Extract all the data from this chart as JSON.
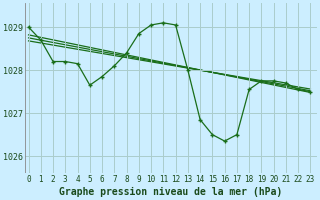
{
  "title": "Graphe pression niveau de la mer (hPa)",
  "background_color": "#cceeff",
  "grid_color": "#aacccc",
  "line_color": "#1a6e1a",
  "x_ticks": [
    0,
    1,
    2,
    3,
    4,
    5,
    6,
    7,
    8,
    9,
    10,
    11,
    12,
    13,
    14,
    15,
    16,
    17,
    18,
    19,
    20,
    21,
    22,
    23
  ],
  "y_ticks": [
    1026,
    1027,
    1028,
    1029
  ],
  "ylim": [
    1025.6,
    1029.55
  ],
  "xlim": [
    -0.3,
    23.5
  ],
  "series_main": [
    1029.0,
    1028.7,
    1028.2,
    1028.2,
    1028.15,
    1027.65,
    1027.85,
    1028.1,
    1028.4,
    1028.85,
    1029.05,
    1029.1,
    1029.05,
    1028.0,
    1026.85,
    1026.5,
    1026.35,
    1026.5,
    1027.55,
    1027.75,
    1027.75,
    1027.7,
    1027.55,
    1027.5
  ],
  "trend1_x": [
    0,
    23
  ],
  "trend1_y": [
    1028.82,
    1027.48
  ],
  "trend2_x": [
    0,
    23
  ],
  "trend2_y": [
    1028.75,
    1027.52
  ],
  "trend3_x": [
    0,
    23
  ],
  "trend3_y": [
    1028.68,
    1027.56
  ],
  "tick_fontsize": 5.5,
  "xlabel_fontsize": 7.0
}
